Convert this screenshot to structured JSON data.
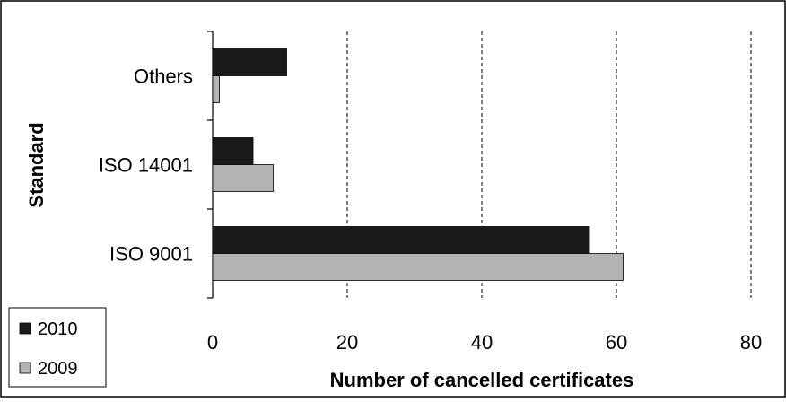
{
  "chart_data": {
    "type": "bar",
    "orientation": "horizontal",
    "categories": [
      "ISO 9001",
      "ISO 14001",
      "Others"
    ],
    "series": [
      {
        "name": "2010",
        "values": [
          56,
          6,
          11
        ],
        "color": "#1a1a1a"
      },
      {
        "name": "2009",
        "values": [
          61,
          9,
          1
        ],
        "color": "#b3b3b3"
      }
    ],
    "xlabel": "Number of cancelled certificates",
    "ylabel": "Standard",
    "xlim": [
      0,
      80
    ],
    "x_ticks": [
      "0",
      "20",
      "40",
      "60",
      "80"
    ],
    "grid": "vertical dashed",
    "legend_position": "bottom-left"
  }
}
